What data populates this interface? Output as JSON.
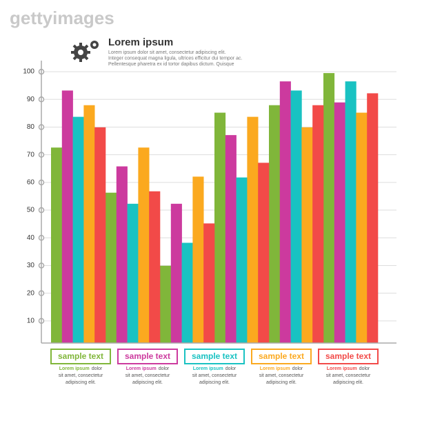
{
  "watermark": "gettyimages",
  "chart_data": {
    "type": "bar",
    "title": "Lorem ipsum",
    "subtitle": [
      "Lorem ipsum dolor sit amet, consectetur adipiscing elit.",
      "Integer consequat magna ligula, ultrices efficitur dui tempor ac.",
      "Pellentesque pharetra ex id tortor dapibus dictum. Quisque"
    ],
    "categories": [
      null,
      null,
      null,
      null,
      null,
      null
    ],
    "series": [
      {
        "name": "sample text",
        "color": "#80b63a",
        "values": [
          72.6,
          56.3,
          29.9,
          85.2,
          87.9,
          99.5
        ]
      },
      {
        "name": "sample text",
        "color": "#cc3a9e",
        "values": [
          93.2,
          65.8,
          52.3,
          77.1,
          96.5,
          88.9
        ]
      },
      {
        "name": "sample text",
        "color": "#19c2c2",
        "values": [
          83.7,
          52.3,
          38.2,
          61.8,
          93.2,
          96.5
        ]
      },
      {
        "name": "sample text",
        "color": "#fba91f",
        "values": [
          87.9,
          72.6,
          62.1,
          83.7,
          79.9,
          85.2
        ]
      },
      {
        "name": "sample text",
        "color": "#f24a48",
        "values": [
          79.9,
          56.8,
          45.2,
          67.1,
          87.9,
          92.2
        ]
      }
    ],
    "legend_note": {
      "lead": "Lorem ipsum",
      "lines": [
        "dolor",
        "sit amet, consectetur",
        "adipiscing elit."
      ]
    },
    "ylim": [
      2,
      104
    ],
    "yticks": [
      10,
      20,
      30,
      40,
      50,
      60,
      70,
      80,
      90,
      100
    ],
    "grid": true
  }
}
